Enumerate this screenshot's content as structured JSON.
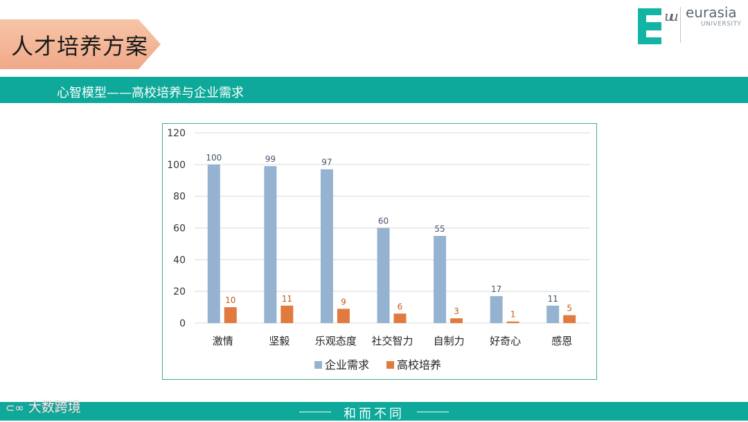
{
  "header": {
    "title": "人才培养方案",
    "subtitle": "心智模型——高校培养与企业需求"
  },
  "logo": {
    "name": "eurasia",
    "sub": "UNIVERSITY"
  },
  "footer": {
    "motto": "和而不同",
    "watermark": "大数跨境"
  },
  "colors": {
    "teal": "#0ea99a",
    "series1": "#95b3d0",
    "series2": "#e07a3e",
    "tab": "#f0a98a"
  },
  "chart_data": {
    "type": "bar",
    "categories": [
      "激情",
      "坚毅",
      "乐观态度",
      "社交智力",
      "自制力",
      "好奇心",
      "感恩"
    ],
    "series": [
      {
        "name": "企业需求",
        "values": [
          100,
          99,
          97,
          60,
          55,
          17,
          11
        ],
        "color": "#95b3d0",
        "label_color": "#44546a"
      },
      {
        "name": "高校培养",
        "values": [
          10,
          11,
          9,
          6,
          3,
          1,
          5
        ],
        "color": "#e07a3e",
        "label_color": "#c55a11"
      }
    ],
    "ylim": [
      0,
      120
    ],
    "yticks": [
      0,
      20,
      40,
      60,
      80,
      100,
      120
    ],
    "grid": true,
    "legend": "bottom"
  }
}
